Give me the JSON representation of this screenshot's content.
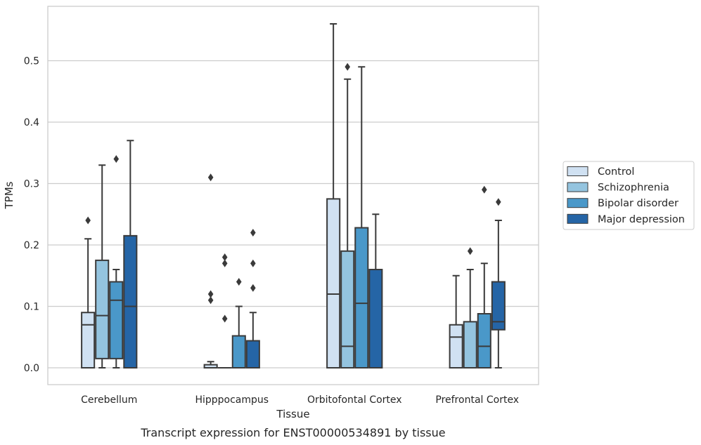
{
  "chart_data": {
    "type": "box",
    "caption": "Transcript expression for ENST00000534891 by tissue",
    "xlabel": "Tissue",
    "ylabel": "TPMs",
    "ylim": [
      -0.027,
      0.59
    ],
    "yticks": [
      "0.0",
      "0.1",
      "0.2",
      "0.3",
      "0.4",
      "0.5"
    ],
    "grid": "horizontal",
    "legend_position": "right",
    "categories": [
      "Cerebellum",
      "Hipppocampus",
      "Orbitofontal Cortex",
      "Prefrontal Cortex"
    ],
    "series": [
      {
        "name": "Control",
        "color": "#d0e1f2",
        "boxes": [
          {
            "whislo": 0.0,
            "q1": 0.0,
            "med": 0.07,
            "q3": 0.09,
            "whishi": 0.21,
            "fliers": [
              0.24
            ]
          },
          {
            "whislo": 0.0,
            "q1": 0.0,
            "med": 0.0,
            "q3": 0.005,
            "whishi": 0.01,
            "fliers": [
              0.11,
              0.12,
              0.31
            ]
          },
          {
            "whislo": 0.0,
            "q1": 0.0,
            "med": 0.12,
            "q3": 0.275,
            "whishi": 0.56,
            "fliers": []
          },
          {
            "whislo": 0.0,
            "q1": 0.0,
            "med": 0.05,
            "q3": 0.07,
            "whishi": 0.15,
            "fliers": []
          }
        ]
      },
      {
        "name": "Schizophrenia",
        "color": "#94c4df",
        "boxes": [
          {
            "whislo": 0.0,
            "q1": 0.015,
            "med": 0.085,
            "q3": 0.175,
            "whishi": 0.33,
            "fliers": []
          },
          {
            "whislo": 0.0,
            "q1": 0.0,
            "med": 0.0,
            "q3": 0.0,
            "whishi": 0.0,
            "fliers": [
              0.08,
              0.17,
              0.18
            ]
          },
          {
            "whislo": 0.0,
            "q1": 0.0,
            "med": 0.035,
            "q3": 0.19,
            "whishi": 0.47,
            "fliers": [
              0.49
            ]
          },
          {
            "whislo": 0.0,
            "q1": 0.0,
            "med": 0.0,
            "q3": 0.075,
            "whishi": 0.16,
            "fliers": [
              0.19
            ]
          }
        ]
      },
      {
        "name": "Bipolar disorder",
        "color": "#4a98c9",
        "boxes": [
          {
            "whislo": 0.0,
            "q1": 0.015,
            "med": 0.11,
            "q3": 0.14,
            "whishi": 0.16,
            "fliers": [
              0.34
            ]
          },
          {
            "whislo": 0.0,
            "q1": 0.0,
            "med": 0.0,
            "q3": 0.052,
            "whishi": 0.1,
            "fliers": [
              0.14
            ]
          },
          {
            "whislo": 0.0,
            "q1": 0.0,
            "med": 0.105,
            "q3": 0.228,
            "whishi": 0.49,
            "fliers": []
          },
          {
            "whislo": 0.0,
            "q1": 0.0,
            "med": 0.035,
            "q3": 0.088,
            "whishi": 0.17,
            "fliers": [
              0.29
            ]
          }
        ]
      },
      {
        "name": "Major depression",
        "color": "#2565a6",
        "boxes": [
          {
            "whislo": 0.0,
            "q1": 0.0,
            "med": 0.1,
            "q3": 0.215,
            "whishi": 0.37,
            "fliers": []
          },
          {
            "whislo": 0.0,
            "q1": 0.0,
            "med": 0.0,
            "q3": 0.044,
            "whishi": 0.09,
            "fliers": [
              0.13,
              0.17,
              0.22
            ]
          },
          {
            "whislo": 0.0,
            "q1": 0.0,
            "med": 0.0,
            "q3": 0.16,
            "whishi": 0.25,
            "fliers": []
          },
          {
            "whislo": 0.0,
            "q1": 0.062,
            "med": 0.075,
            "q3": 0.14,
            "whishi": 0.24,
            "fliers": [
              0.27
            ]
          }
        ]
      }
    ]
  }
}
